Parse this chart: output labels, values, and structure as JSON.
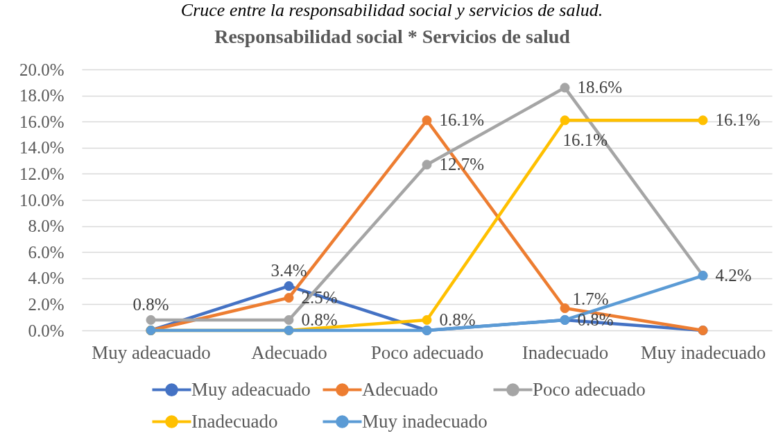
{
  "chart_data": {
    "type": "line",
    "title": "Responsabilidad social * Servicios de salud",
    "annotations": [
      "Cruce entre la responsabilidad social y servicios de salud."
    ],
    "categories": [
      "Muy adeacuado",
      "Adecuado",
      "Poco adecuado",
      "Inadecuado",
      "Muy inadecuado"
    ],
    "series": [
      {
        "name": "Muy adeacuado",
        "color": "#4472c4",
        "values": [
          0,
          3.4,
          0,
          0.8,
          0
        ],
        "value_labels": [
          null,
          "3.4%",
          null,
          "0.8%",
          null
        ]
      },
      {
        "name": "Adecuado",
        "color": "#ed7d31",
        "values": [
          0,
          2.5,
          16.1,
          1.7,
          0
        ],
        "value_labels": [
          null,
          "2.5%",
          "16.1%",
          "1.7%",
          null
        ]
      },
      {
        "name": "Poco adecuado",
        "color": "#a5a5a5",
        "values": [
          0.8,
          0.8,
          12.7,
          18.6,
          4.2
        ],
        "value_labels": [
          "0.8%",
          "0.8%",
          "12.7%",
          "18.6%",
          null
        ]
      },
      {
        "name": "Inadecuado",
        "color": "#ffc000",
        "values": [
          0,
          0,
          0.8,
          16.1,
          16.1
        ],
        "value_labels": [
          null,
          null,
          "0.8%",
          "16.1%",
          "16.1%"
        ]
      },
      {
        "name": "Muy inadecuado",
        "color": "#5b9bd5",
        "values": [
          0,
          0,
          0,
          0.8,
          4.2
        ],
        "value_labels": [
          null,
          null,
          null,
          null,
          "4.2%"
        ]
      }
    ],
    "ylim": [
      0,
      20
    ],
    "yticks": [
      {
        "value": 0,
        "label": "0.0%"
      },
      {
        "value": 2,
        "label": "2.0%"
      },
      {
        "value": 4,
        "label": "4.0%"
      },
      {
        "value": 6,
        "label": "6.0%"
      },
      {
        "value": 8,
        "label": "8.0%"
      },
      {
        "value": 10,
        "label": "10.0%"
      },
      {
        "value": 12,
        "label": "12.0%"
      },
      {
        "value": 14,
        "label": "14.0%"
      },
      {
        "value": 16,
        "label": "16.0%"
      },
      {
        "value": 18,
        "label": "18.0%"
      },
      {
        "value": 20,
        "label": "20.0%"
      }
    ],
    "grid": "y",
    "legend": "bottom",
    "marker": "circle",
    "line_style": "solid"
  }
}
